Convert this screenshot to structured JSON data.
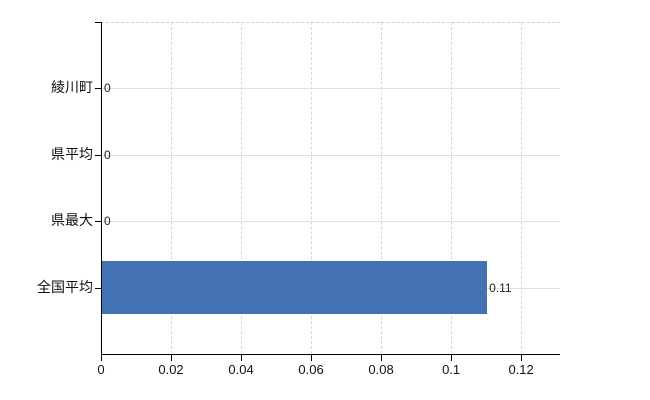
{
  "chart_data": {
    "type": "bar",
    "orientation": "horizontal",
    "title": "",
    "xlabel": "",
    "ylabel": "",
    "categories": [
      "綾川町",
      "県平均",
      "県最大",
      "全国平均"
    ],
    "values": [
      0,
      0,
      0,
      0.11
    ],
    "value_labels": [
      "0",
      "0",
      "0",
      "0.11"
    ],
    "x_ticks": [
      0,
      0.02,
      0.04,
      0.06,
      0.08,
      0.1,
      0.12
    ],
    "x_tick_labels": [
      "0",
      "0.02",
      "0.04",
      "0.06",
      "0.08",
      "0.1",
      "0.12"
    ],
    "xlim": [
      0,
      0.1311
    ],
    "grid": true,
    "legend": "none",
    "bar_color": "#4372b2",
    "axis_color": "#000000",
    "horizontal_gridline_color": "#dce1dc",
    "vertical_gridline_color": "#d7d7d7",
    "label_color": "#111111",
    "background_color": "#ffffff"
  }
}
